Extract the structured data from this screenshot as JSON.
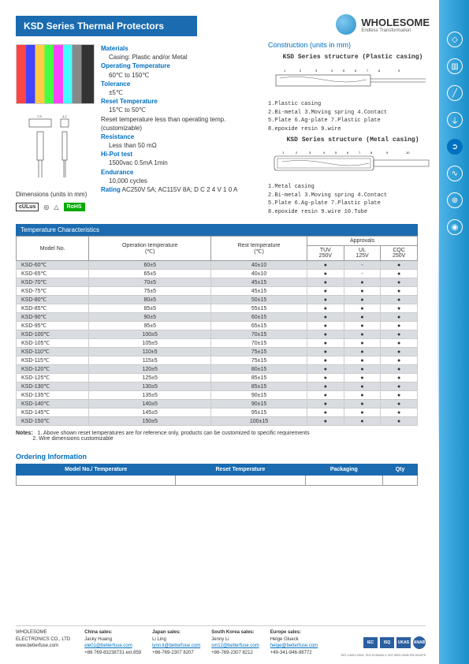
{
  "brand": {
    "name": "WHOLESOME",
    "tagline": "Endless Transformation"
  },
  "title": "KSD Series Thermal Protectors",
  "specs": {
    "materials_lbl": "Materials",
    "casing_lbl": "Casing:",
    "casing_val": "Plastic and/or Metal",
    "optemp_lbl": "Operating Temperature",
    "optemp_val": "60℃ to 150℃",
    "tol_lbl": "Tolerance",
    "tol_val": "±5℃",
    "reset_lbl": "Reset Temperature",
    "reset_val": "15℃ to 50℃",
    "reset_note": "Reset temperature less than operating temp. (customizable)",
    "res_lbl": "Resistance",
    "res_val": "Less than 50 mΩ",
    "hipot_lbl": "Hi-Pot test",
    "hipot_val": "1500vac 0.5mA 1min",
    "end_lbl": "Endurance",
    "end_val": "10,000 cycles",
    "rating_lbl": "Rating",
    "rating_val": "AC250V 5A; AC115V 8A; D C 2 4 V 1 0 A"
  },
  "dimensions_label": "Dimensions (units in mm)",
  "certs": [
    "cULus",
    "◎",
    "△",
    "RoHS"
  ],
  "construction": {
    "header": "Construction (units in mm)",
    "plastic_title": "KSD Series structure (Plastic casing)",
    "plastic_labels": "1.Plastic casing\n2.Bi-metal   3.Moving spring   4.Contact\n5.Plate   6.Ag-plate   7.Plastic plate\n8.epoxide resin   9.wire",
    "metal_title": "KSD Series structure (Metal casing)",
    "metal_labels": "1.Metal casing\n2.Bi-metal   3.Moving spring   4.Contact\n5.Plate   6.Ag-plate   7.Plastic plate\n8.epoxide resin   9.wire   10.Tube"
  },
  "table": {
    "section_header": "Temperature Characteristics",
    "columns": {
      "model": "Model No.",
      "op": "Operation temperature\n(℃)",
      "rest": "Rest temperature\n(℃)",
      "approvals": "Approvals",
      "tuv": "TUV\n250V",
      "ul": "UL\n125V",
      "cqc": "CQC\n250V"
    },
    "rows": [
      {
        "m": "KSD-60℃",
        "o": "60±5",
        "r": "40±10",
        "t": "●",
        "u": "-",
        "c": "●"
      },
      {
        "m": "KSD-65℃",
        "o": "65±5",
        "r": "40±10",
        "t": "●",
        "u": "-",
        "c": "●"
      },
      {
        "m": "KSD-70℃",
        "o": "70±5",
        "r": "45±15",
        "t": "●",
        "u": "●",
        "c": "●"
      },
      {
        "m": "KSD-75℃",
        "o": "75±5",
        "r": "45±15",
        "t": "●",
        "u": "●",
        "c": "●"
      },
      {
        "m": "KSD-80℃",
        "o": "80±5",
        "r": "50±15",
        "t": "●",
        "u": "●",
        "c": "●"
      },
      {
        "m": "KSD-85℃",
        "o": "85±5",
        "r": "55±15",
        "t": "●",
        "u": "●",
        "c": "●"
      },
      {
        "m": "KSD-90℃",
        "o": "90±5",
        "r": "60±15",
        "t": "●",
        "u": "●",
        "c": "●"
      },
      {
        "m": "KSD-95℃",
        "o": "95±5",
        "r": "65±15",
        "t": "●",
        "u": "●",
        "c": "●"
      },
      {
        "m": "KSD-100℃",
        "o": "100±5",
        "r": "70±15",
        "t": "●",
        "u": "●",
        "c": "●"
      },
      {
        "m": "KSD-105℃",
        "o": "105±5",
        "r": "70±15",
        "t": "●",
        "u": "●",
        "c": "●"
      },
      {
        "m": "KSD-110℃",
        "o": "110±5",
        "r": "75±15",
        "t": "●",
        "u": "●",
        "c": "●"
      },
      {
        "m": "KSD-115℃",
        "o": "115±5",
        "r": "75±15",
        "t": "●",
        "u": "●",
        "c": "●"
      },
      {
        "m": "KSD-120℃",
        "o": "120±5",
        "r": "80±15",
        "t": "●",
        "u": "●",
        "c": "●"
      },
      {
        "m": "KSD-125℃",
        "o": "125±5",
        "r": "85±15",
        "t": "●",
        "u": "●",
        "c": "●"
      },
      {
        "m": "KSD-130℃",
        "o": "130±5",
        "r": "85±15",
        "t": "●",
        "u": "●",
        "c": "●"
      },
      {
        "m": "KSD-135℃",
        "o": "135±5",
        "r": "90±15",
        "t": "●",
        "u": "●",
        "c": "●"
      },
      {
        "m": "KSD-140℃",
        "o": "140±5",
        "r": "90±15",
        "t": "●",
        "u": "●",
        "c": "●"
      },
      {
        "m": "KSD-145℃",
        "o": "145±5",
        "r": "95±15",
        "t": "●",
        "u": "●",
        "c": "●"
      },
      {
        "m": "KSD-150℃",
        "o": "150±5",
        "r": "100±15",
        "t": "●",
        "u": "●",
        "c": "●"
      }
    ]
  },
  "notes": {
    "label": "Notes:",
    "n1": "1. Above shown reset temperatures are for reference only, products can be customized to specific requirements",
    "n2": "2. Wire dimensions customizable"
  },
  "ordering": {
    "header": "Ordering Information",
    "cols": [
      "Model No./ Temperature",
      "Reset Temperature",
      "Packaging",
      "Qty"
    ]
  },
  "footer": {
    "company": "WHOLESOME\nELECTRONICS CO., LTD\nwww.betterfuse.com",
    "contacts": [
      {
        "region": "China sales:",
        "name": "Jacky Huang",
        "email": "ele01@betterfuse.com",
        "tel": "+86 769-83238731 ext.859"
      },
      {
        "region": "Japan sales:",
        "name": "Li Ling",
        "email": "lynn.li@betterfuse.com",
        "tel": "+86-769-2307 8207"
      },
      {
        "region": "South Korea sales:",
        "name": "Jenny Li",
        "email": "sm12@betterfuse.com",
        "tel": "+86-769-2307 8212"
      },
      {
        "region": "Europe sales:",
        "name": "Helge Glueck",
        "email": "helge@betterfuse.com",
        "tel": "+49-341-946-98772"
      }
    ],
    "logos": [
      "IEC",
      "ISQ",
      "UKAS",
      "ANAB"
    ],
    "iso": "ISO 14001:2004, ISO 9110684-1        ISO 9001:2008 FM 541875"
  },
  "colors": {
    "header_bg": "#1a6bb0",
    "accent": "#0070c0",
    "row_alt": "#d9dce0",
    "sidebar": "#4fb4e8"
  }
}
